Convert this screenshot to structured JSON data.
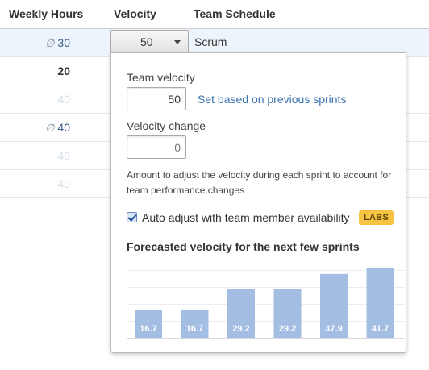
{
  "columns": {
    "weekly_hours": "Weekly Hours",
    "velocity": "Velocity",
    "team_schedule": "Team Schedule"
  },
  "rows": [
    {
      "hours": "30",
      "empty_symbol": "∅",
      "style": "normal",
      "selected": true
    },
    {
      "hours": "20",
      "empty_symbol": "",
      "style": "bold",
      "selected": false
    },
    {
      "hours": "40",
      "empty_symbol": "",
      "style": "faint",
      "selected": false
    },
    {
      "hours": "40",
      "empty_symbol": "∅",
      "style": "normal",
      "selected": false
    },
    {
      "hours": "40",
      "empty_symbol": "",
      "style": "faint",
      "selected": false
    },
    {
      "hours": "40",
      "empty_symbol": "",
      "style": "faint",
      "selected": false
    }
  ],
  "selected_row": {
    "velocity": "50",
    "schedule": "Scrum"
  },
  "popup": {
    "team_velocity_label": "Team velocity",
    "team_velocity_value": "50",
    "set_link": "Set based on previous sprints",
    "velocity_change_label": "Velocity change",
    "velocity_change_placeholder": "0",
    "help_text": "Amount to adjust the velocity during each sprint to account for team performance changes",
    "auto_adjust_label": "Auto adjust with team member availability",
    "auto_adjust_checked": true,
    "labs_badge": "LABS",
    "chart_title": "Forecasted velocity for the next few sprints"
  },
  "chart_data": {
    "type": "bar",
    "title": "Forecasted velocity for the next few sprints",
    "categories": [
      "",
      "",
      "",
      "",
      "",
      ""
    ],
    "values": [
      16.7,
      16.7,
      29.2,
      29.2,
      37.9,
      41.7
    ],
    "labels": [
      "16.7",
      "16.7",
      "29.2",
      "29.2",
      "37.9",
      "41.7"
    ],
    "ylim": [
      0,
      45
    ],
    "grid": true,
    "bar_color": "#a4bde2",
    "label_color": "#ffffff"
  },
  "colors": {
    "link": "#3b73af",
    "selected_row": "#eef4fb",
    "labs_badge": "#f6c342"
  }
}
